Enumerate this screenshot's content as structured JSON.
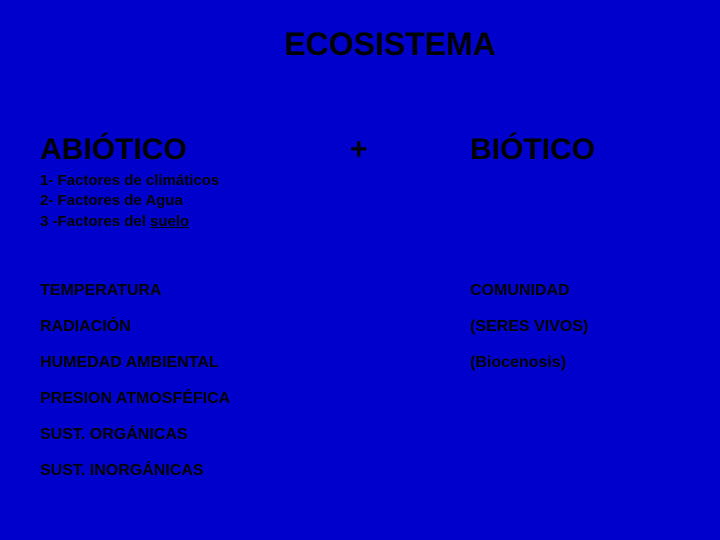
{
  "background_color": "#0000cc",
  "text_color": "#000000",
  "font_family": "Arial",
  "title": "ECOSISTEMA",
  "heading_left": "ABIÓTICO",
  "plus": "+",
  "heading_right": "BIÓTICO",
  "sublist": {
    "item1": "1- Factores de climáticos",
    "item2": "2- Factores de Agua",
    "item3_prefix": "3 -Factores del ",
    "item3_underlined": "suelo"
  },
  "left_items": {
    "i1": "TEMPERATURA",
    "i2": "RADIACIÓN",
    "i3": "HUMEDAD AMBIENTAL",
    "i4": "PRESION ATMOSFÉFICA",
    "i5": "SUST. ORGÁNICAS",
    "i6": "SUST. INORGÁNICAS"
  },
  "right_items": {
    "i1": "COMUNIDAD",
    "i2": "(SERES VIVOS)",
    "i3": "(Biocenosis)"
  },
  "fontsizes": {
    "title": 32,
    "headings": 30,
    "sublist": 15,
    "items": 16
  }
}
